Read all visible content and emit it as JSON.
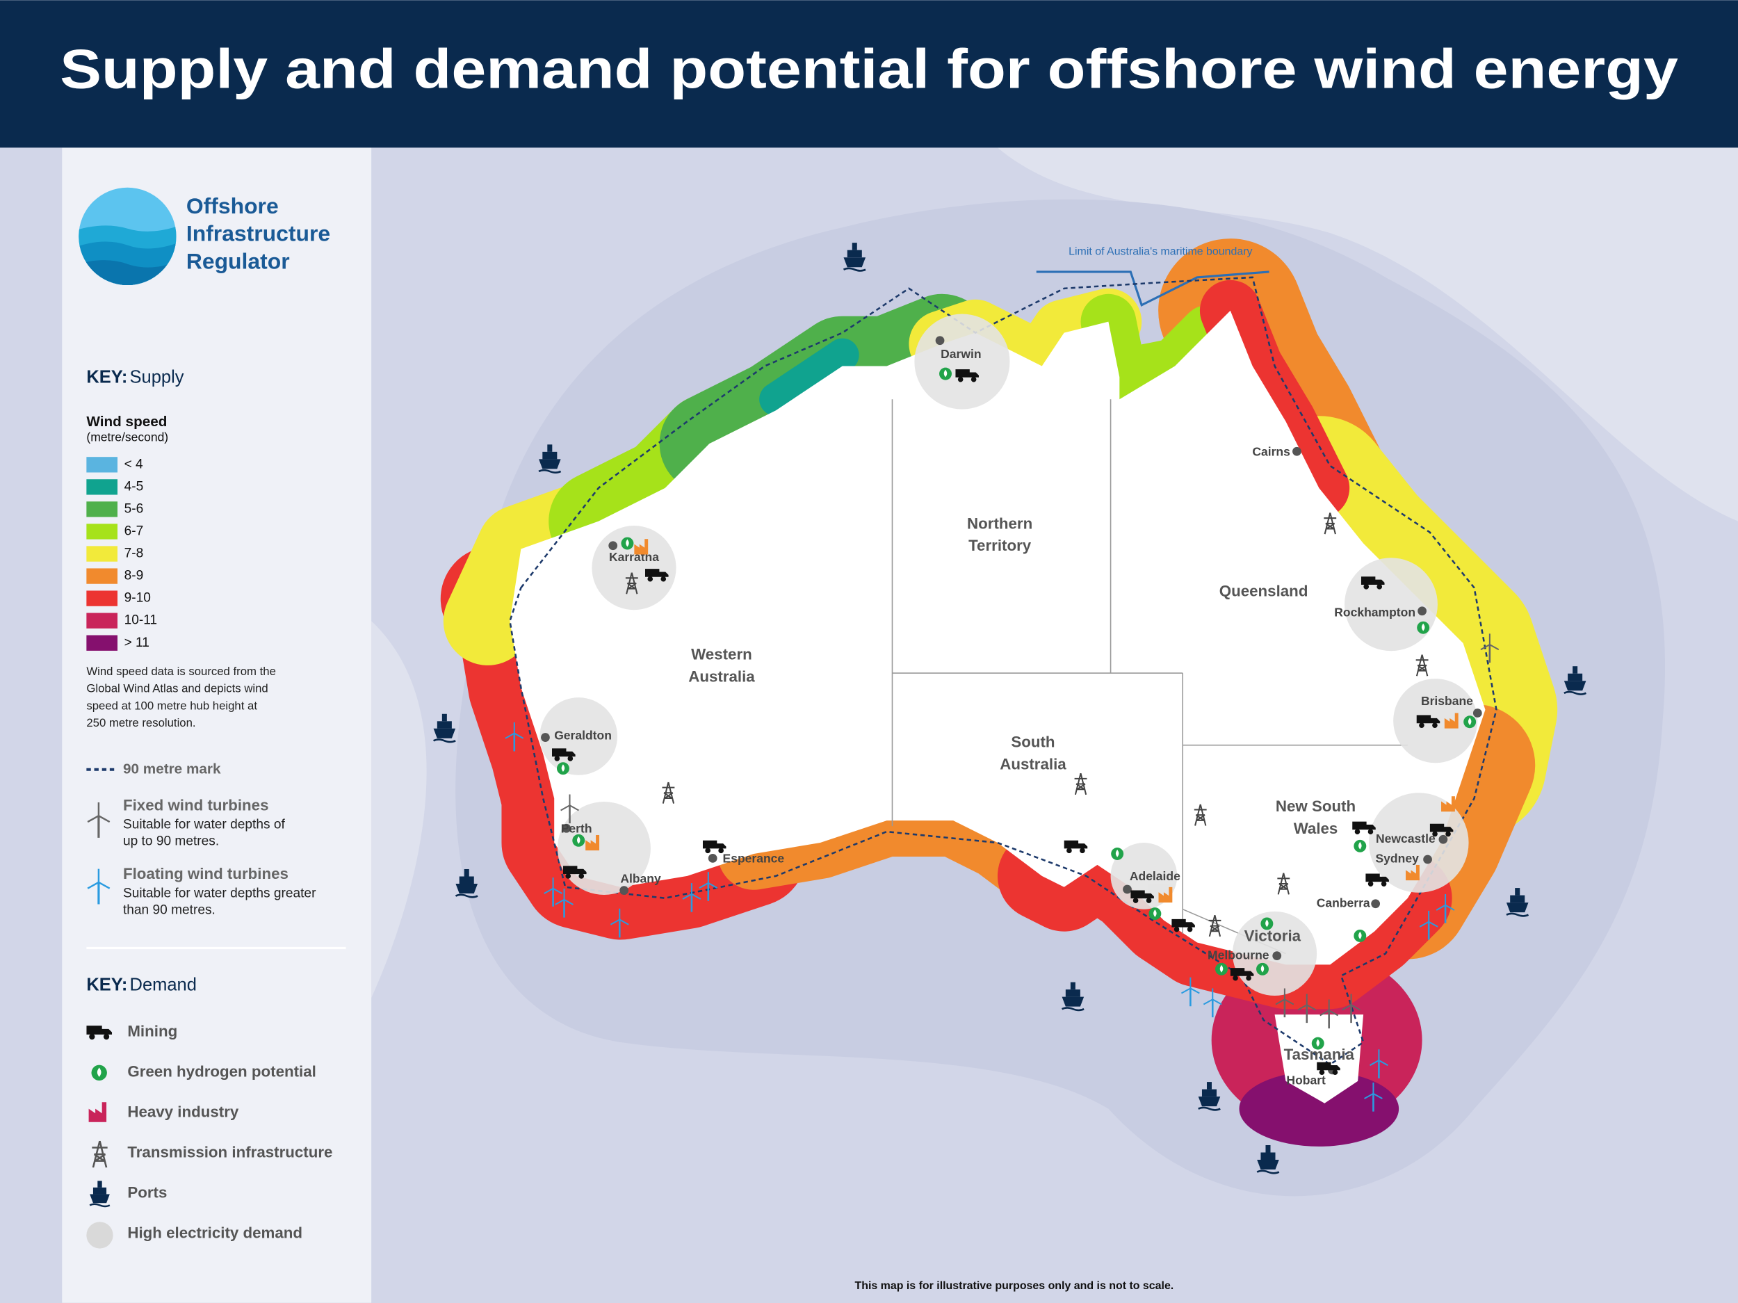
{
  "header": {
    "title": "Supply and demand potential for offshore wind energy"
  },
  "logo": {
    "lines": [
      "Offshore",
      "Infrastructure",
      "Regulator"
    ]
  },
  "supply_key": {
    "heading_bold": "KEY:",
    "heading": "Supply",
    "wind_speed_title": "Wind speed",
    "wind_speed_unit": "(metre/second)",
    "items": [
      {
        "label": "< 4",
        "color": "#5ab4e0"
      },
      {
        "label": "4-5",
        "color": "#10a38f"
      },
      {
        "label": "5-6",
        "color": "#4fb04b"
      },
      {
        "label": "6-7",
        "color": "#a6e21a"
      },
      {
        "label": "7-8",
        "color": "#f2ea3a"
      },
      {
        "label": "8-9",
        "color": "#f18a2d"
      },
      {
        "label": "9-10",
        "color": "#ec3431"
      },
      {
        "label": "10-11",
        "color": "#c9245a"
      },
      {
        "label": "> 11",
        "color": "#85106e"
      }
    ],
    "note_lines": [
      "Wind speed data is sourced from the",
      "Global Wind Atlas and depicts wind",
      "speed at 100 metre hub height at",
      "250 metre resolution."
    ],
    "mark_90": "90 metre mark",
    "fixed": {
      "title": "Fixed wind turbines",
      "desc_lines": [
        "Suitable for water depths of",
        "up to 90 metres."
      ]
    },
    "floating": {
      "title": "Floating wind turbines",
      "desc_lines": [
        "Suitable for water depths greater",
        "than 90 metres."
      ]
    }
  },
  "demand_key": {
    "heading_bold": "KEY:",
    "heading": "Demand",
    "items": [
      "Mining",
      "Green hydrogen potential",
      "Heavy industry",
      "Transmission infrastructure",
      "Ports",
      "High electricity demand"
    ]
  },
  "map": {
    "boundary_label": "Limit of Australia's maritime boundary",
    "regions": [
      {
        "lines": [
          "Northern",
          "Territory"
        ]
      },
      {
        "lines": [
          "Queensland"
        ]
      },
      {
        "lines": [
          "Western",
          "Australia"
        ]
      },
      {
        "lines": [
          "South",
          "Australia"
        ]
      },
      {
        "lines": [
          "New South",
          "Wales"
        ]
      },
      {
        "lines": [
          "Victoria"
        ]
      },
      {
        "lines": [
          "Tasmania"
        ]
      }
    ],
    "cities": [
      "Darwin",
      "Karratha",
      "Cairns",
      "Rockhampton",
      "Brisbane",
      "Geraldton",
      "Perth",
      "Albany",
      "Esperance",
      "Adelaide",
      "Newcastle",
      "Sydney",
      "Canberra",
      "Melbourne",
      "Hobart"
    ]
  },
  "footer": "This map is for illustrative purposes only and is not to scale."
}
